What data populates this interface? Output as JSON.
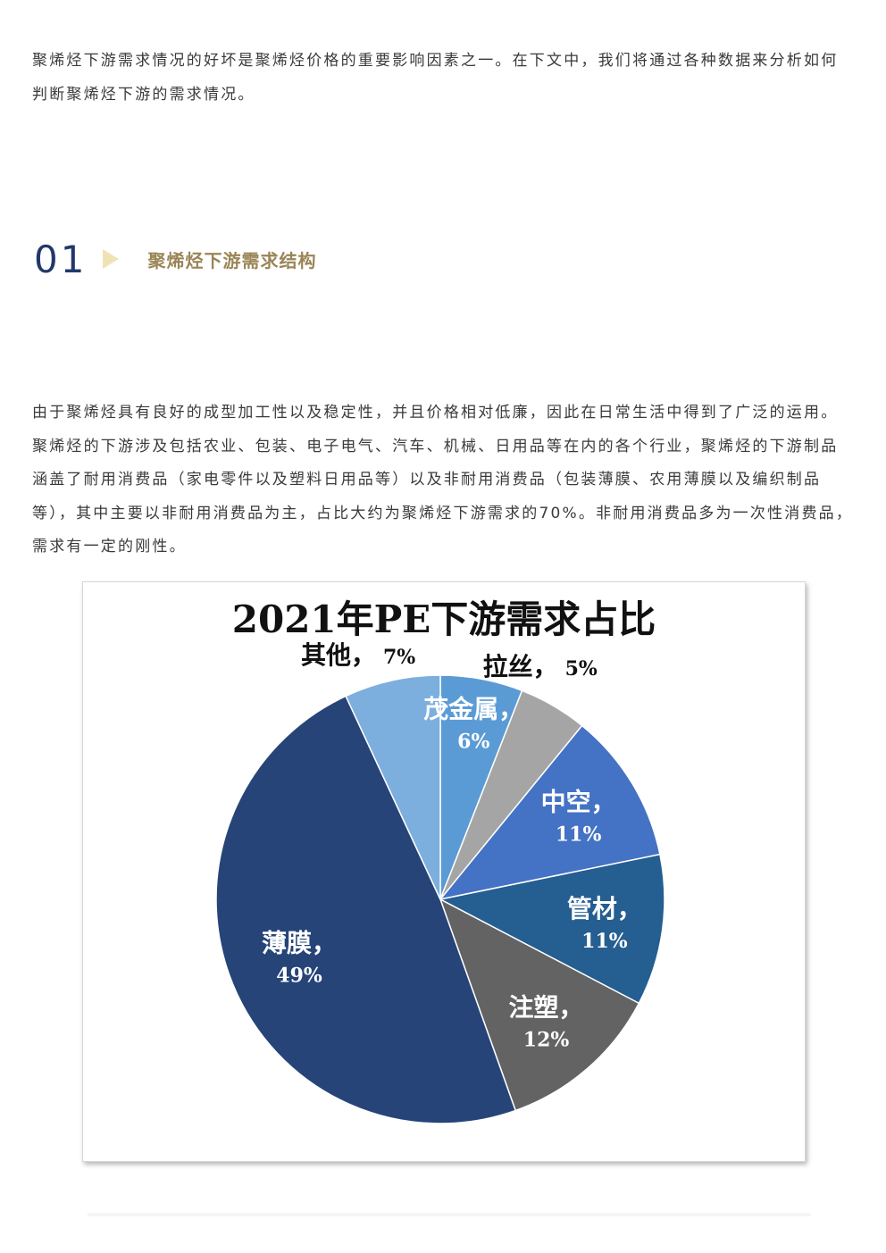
{
  "intro_text": "聚烯烃下游需求情况的好坏是聚烯烃价格的重要影响因素之一。在下文中，我们将通过各种数据来分析如何判断聚烯烃下游的需求情况。",
  "section": {
    "number": "01",
    "title": "聚烯烃下游需求结构",
    "number_color": "#22386a",
    "arrow_color": "#efe3b4",
    "title_color": "#9a8556"
  },
  "body_text": "由于聚烯烃具有良好的成型加工性以及稳定性，并且价格相对低廉，因此在日常生活中得到了广泛的运用。聚烯烃的下游涉及包括农业、包装、电子电气、汽车、机械、日用品等在内的各个行业，聚烯烃的下游制品涵盖了耐用消费品（家电零件以及塑料日用品等）以及非耐用消费品（包装薄膜、农用薄膜以及编织制品等），其中主要以非耐用消费品为主，占比大约为聚烯烃下游需求的70%。非耐用消费品多为一次性消费品，需求有一定的刚性。",
  "chart_data": {
    "type": "pie",
    "title": "2021年PE下游需求占比",
    "slices": [
      {
        "label": "茂金属",
        "value": 6,
        "pct": "6%",
        "color": "#5b9bd5"
      },
      {
        "label": "拉丝",
        "value": 5,
        "pct": "5%",
        "color": "#a5a5a5"
      },
      {
        "label": "中空",
        "value": 11,
        "pct": "11%",
        "color": "#4472c4"
      },
      {
        "label": "管材",
        "value": 11,
        "pct": "11%",
        "color": "#255e91"
      },
      {
        "label": "注塑",
        "value": 12,
        "pct": "12%",
        "color": "#636363"
      },
      {
        "label": "薄膜",
        "value": 49,
        "pct": "49%",
        "color": "#264478"
      },
      {
        "label": "其他",
        "value": 7,
        "pct": "7%",
        "color": "#7cafdd"
      }
    ]
  }
}
